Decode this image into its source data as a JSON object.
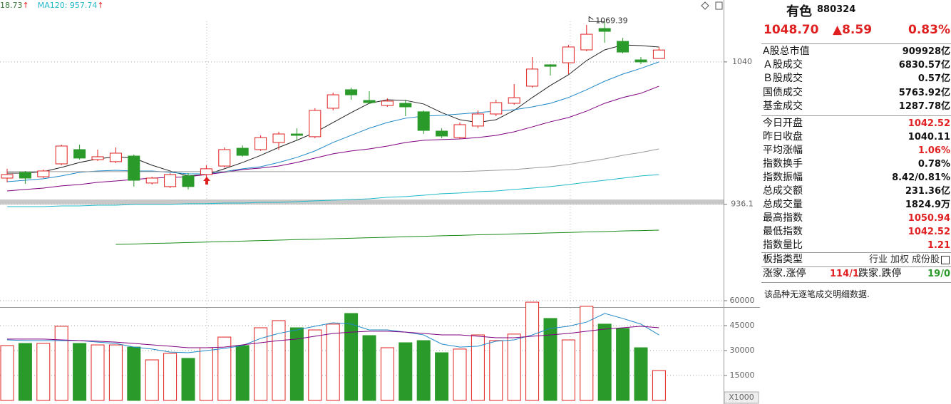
{
  "chart_data": [
    {
      "type": "candlestick",
      "header": [
        {
          "text": "18.73",
          "color": "#3a7a3a"
        },
        {
          "text": "MA120: 957.74",
          "color": "#20b8c8"
        }
      ],
      "arrow": "↑",
      "arrow_color": "#e02020",
      "max_label": "1069.39",
      "up_color": "#e02020",
      "down_color": "#2a9a2a",
      "open": [
        955.2,
        959.4,
        956.2,
        965.6,
        976.0,
        968.7,
        967.2,
        971.3,
        951.6,
        949.0,
        956.8,
        957.8,
        964.0,
        977.0,
        976.0,
        981.2,
        987.4,
        985.4,
        1006.2,
        1019.7,
        1011.9,
        1008.2,
        1009.8,
        1003.6,
        989.5,
        984.8,
        993.2,
        1002.0,
        1009.8,
        1022.3,
        1037.9,
        1039.4,
        1048.8,
        1064.4,
        1055.0,
        1041.5,
        1042.52
      ],
      "high": [
        962.0,
        960.4,
        961.4,
        979.6,
        979.6,
        976.0,
        977.6,
        972.4,
        956.2,
        958.8,
        958.8,
        964.6,
        977.6,
        979.1,
        986.4,
        989.0,
        991.6,
        1006.2,
        1017.6,
        1021.2,
        1018.6,
        1013.4,
        1012.4,
        1004.6,
        991.6,
        995.8,
        1004.6,
        1012.4,
        1023.8,
        1043.6,
        1038.4,
        1052.4,
        1067.0,
        1069.39,
        1057.6,
        1043.6,
        1050.94
      ],
      "low": [
        952.1,
        951.0,
        955.2,
        964.6,
        968.7,
        967.7,
        966.1,
        949.0,
        950.5,
        947.9,
        946.9,
        955.2,
        963.0,
        970.8,
        975.0,
        976.0,
        982.8,
        984.3,
        1004.6,
        1012.4,
        1009.3,
        1007.2,
        1000.4,
        987.4,
        984.3,
        983.8,
        991.6,
        1000.4,
        1008.8,
        1021.2,
        1030.1,
        1031.1,
        1047.8,
        1054.0,
        1046.2,
        1038.4,
        1042.52
      ],
      "close": [
        957.8,
        955.2,
        960.4,
        978.6,
        969.8,
        970.8,
        973.4,
        953.6,
        955.2,
        957.8,
        949.0,
        962.0,
        976.0,
        971.8,
        984.8,
        987.4,
        986.4,
        1004.6,
        1016.0,
        1016.0,
        1010.3,
        1011.4,
        1007.2,
        990.0,
        985.9,
        994.2,
        1002.0,
        1010.3,
        1013.9,
        1034.8,
        1036.8,
        1050.9,
        1060.2,
        1062.3,
        1047.2,
        1040.0,
        1048.7
      ],
      "lines": [
        {
          "color": "#222222",
          "values": [
            958.8,
            958.8,
            959.9,
            963.0,
            966.6,
            969.2,
            970.8,
            969.8,
            964.6,
            960.4,
            956.8,
            957.8,
            962.0,
            966.6,
            971.8,
            977.6,
            982.8,
            988.5,
            995.8,
            1003.0,
            1009.8,
            1012.4,
            1011.9,
            1009.3,
            1003.0,
            997.8,
            995.8,
            997.8,
            1004.6,
            1014.0,
            1022.8,
            1030.6,
            1041.0,
            1048.8,
            1052.4,
            1051.9,
            1050.9
          ]
        },
        {
          "color": "#1e88c8",
          "values": [
            952.6,
            953.6,
            954.7,
            956.8,
            959.4,
            960.4,
            960.9,
            960.4,
            960.4,
            959.4,
            958.3,
            958.3,
            959.9,
            962.0,
            963.5,
            966.6,
            970.3,
            975.0,
            981.2,
            986.4,
            991.6,
            995.8,
            998.9,
            1000.4,
            1001.0,
            1002.0,
            1003.0,
            1004.1,
            1005.1,
            1007.2,
            1009.8,
            1014.0,
            1019.7,
            1025.9,
            1031.1,
            1035.3,
            1040.0
          ]
        },
        {
          "color": "#800080",
          "values": [
            945.8,
            946.9,
            947.9,
            949.5,
            950.5,
            952.1,
            953.1,
            954.2,
            955.2,
            955.7,
            956.2,
            957.8,
            959.4,
            961.4,
            962.5,
            964.0,
            966.6,
            969.8,
            972.9,
            975.0,
            976.5,
            978.6,
            981.2,
            982.8,
            983.3,
            983.8,
            984.8,
            986.4,
            989.0,
            992.6,
            996.3,
            999.4,
            1004.1,
            1009.8,
            1014.0,
            1017.1,
            1022.3
          ]
        },
        {
          "color": "#9a9a9a",
          "values": [
            959.9,
            959.9,
            959.9,
            959.9,
            959.9,
            959.9,
            959.9,
            959.9,
            959.9,
            959.9,
            959.9,
            959.9,
            959.9,
            959.9,
            959.9,
            959.9,
            959.9,
            959.9,
            959.9,
            959.9,
            959.9,
            959.9,
            959.9,
            959.9,
            959.9,
            959.9,
            960.4,
            960.9,
            961.4,
            962.5,
            963.5,
            965.1,
            967.2,
            969.2,
            971.8,
            973.9,
            976.5
          ]
        },
        {
          "color": "#20b8c8",
          "values": [
            934.4,
            934.4,
            934.4,
            934.9,
            934.9,
            935.4,
            935.4,
            936.0,
            936.0,
            936.0,
            936.5,
            936.5,
            937.0,
            937.0,
            937.5,
            937.5,
            938.0,
            938.6,
            939.1,
            939.6,
            940.1,
            941.2,
            941.7,
            942.7,
            943.8,
            944.3,
            945.3,
            945.8,
            946.9,
            947.9,
            949.0,
            950.5,
            952.1,
            953.6,
            955.2,
            956.8,
            957.74
          ]
        },
        {
          "color": "#1a8a1a",
          "values": [
            null,
            null,
            null,
            null,
            null,
            null,
            906.8,
            907.1,
            907.5,
            907.8,
            908.2,
            908.5,
            908.9,
            909.2,
            909.6,
            909.9,
            910.3,
            910.6,
            911.0,
            911.3,
            911.7,
            912.0,
            912.4,
            912.7,
            913.1,
            913.4,
            913.8,
            914.1,
            914.5,
            914.8,
            915.2,
            915.5,
            915.9,
            916.2,
            916.6,
            916.9,
            917.2
          ]
        }
      ],
      "ylim": [
        862.6,
        1085.2
      ],
      "yticks": [
        936.1,
        1040
      ],
      "grid": true
    },
    {
      "type": "bar",
      "values": [
        33000,
        34300,
        34300,
        44600,
        34300,
        33400,
        33400,
        32100,
        24400,
        28300,
        25300,
        31700,
        38100,
        33000,
        43700,
        48000,
        43700,
        42400,
        45900,
        52300,
        39000,
        31700,
        34700,
        36000,
        28700,
        30900,
        39400,
        36000,
        39900,
        59100,
        49300,
        36400,
        56600,
        45900,
        43300,
        31700,
        18000
      ],
      "lines": [
        {
          "color": "#1e88c8",
          "values": [
            36400,
            36000,
            36000,
            36000,
            36000,
            35100,
            34300,
            32100,
            30900,
            29100,
            28700,
            30000,
            31300,
            33000,
            37300,
            40300,
            42400,
            44600,
            46700,
            45900,
            42400,
            42400,
            41100,
            39400,
            33900,
            32100,
            32600,
            35600,
            36400,
            39400,
            43300,
            44600,
            47100,
            52300,
            49300,
            45900,
            39400
          ]
        },
        {
          "color": "#800080",
          "values": [
            36900,
            36900,
            36900,
            36400,
            36000,
            35600,
            35100,
            34300,
            33400,
            32600,
            31700,
            31700,
            32100,
            33400,
            34700,
            36000,
            36900,
            38600,
            40300,
            41100,
            41600,
            41600,
            41100,
            40300,
            39400,
            39400,
            38600,
            37700,
            37700,
            38600,
            39400,
            40300,
            41600,
            42900,
            43700,
            44600,
            43700
          ]
        }
      ],
      "ylim": [
        0,
        61700
      ],
      "yticks": [
        15000,
        30000,
        45000,
        60000
      ],
      "grid": true,
      "unit_label": "X1000"
    }
  ],
  "panel": {
    "name": "有色",
    "code": "880324",
    "price": "1048.70",
    "change": "▲8.59",
    "percent": "0.83%",
    "quote_color": "#e02020",
    "groups": [
      [
        {
          "label": "A股总市值",
          "value": "909928亿"
        },
        {
          "label": "Ａ股成交",
          "value": "6830.57亿"
        },
        {
          "label": "Ｂ股成交",
          "value": "0.57亿"
        },
        {
          "label": "国债成交",
          "value": "5763.92亿"
        },
        {
          "label": "基金成交",
          "value": "1287.78亿"
        }
      ],
      [
        {
          "label": "今日开盘",
          "value": "1042.52",
          "color": "#e02020"
        },
        {
          "label": "昨日收盘",
          "value": "1040.11"
        },
        {
          "label": "平均涨幅",
          "value": "1.06%",
          "color": "#e02020"
        },
        {
          "label": "指数换手",
          "value": "0.78%"
        },
        {
          "label": "指数振幅",
          "value": "8.42/0.81%"
        },
        {
          "label": "总成交额",
          "value": "231.36亿"
        },
        {
          "label": "总成交量",
          "value": "1824.9万"
        },
        {
          "label": "最高指数",
          "value": "1050.94",
          "color": "#e02020"
        },
        {
          "label": "最低指数",
          "value": "1042.52",
          "color": "#e02020"
        },
        {
          "label": "指数量比",
          "value": "1.21",
          "color": "#e02020"
        }
      ]
    ],
    "type_row": {
      "label": "板指类型",
      "values": [
        "行业",
        "加权",
        "成份股"
      ]
    },
    "updown": {
      "up_label": "涨家.涨停",
      "up_value": "114/1",
      "down_label": "跌家.跌停",
      "down_value": "19/0"
    },
    "note": "该品种无逐笔成交明细数据."
  }
}
